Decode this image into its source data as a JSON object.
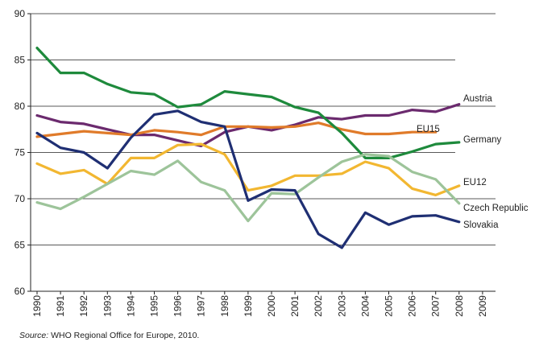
{
  "chart_data": {
    "type": "line",
    "title": "",
    "xlabel": "",
    "ylabel": "",
    "ylim": [
      60,
      90
    ],
    "yticks": [
      60,
      65,
      70,
      75,
      80,
      85,
      90
    ],
    "x": [
      "1990",
      "1991",
      "1992",
      "1993",
      "1994",
      "1995",
      "1996",
      "1997",
      "1998",
      "1999",
      "2000",
      "2001",
      "2002",
      "2003",
      "2004",
      "2005",
      "2006",
      "2007",
      "2008",
      "2009"
    ],
    "grid": "horizontal",
    "legend": "inline labels at line ends",
    "series": [
      {
        "name": "Austria",
        "color": "#6b2a6e",
        "values": [
          79.0,
          78.3,
          78.1,
          77.5,
          76.9,
          76.9,
          76.3,
          75.7,
          77.2,
          77.8,
          77.4,
          78.0,
          78.8,
          78.6,
          79.0,
          79.0,
          79.6,
          79.4,
          80.2,
          null
        ]
      },
      {
        "name": "EU15",
        "color": "#e07b2a",
        "values": [
          76.7,
          77.0,
          77.3,
          77.1,
          76.9,
          77.4,
          77.2,
          76.9,
          77.8,
          77.8,
          77.7,
          77.8,
          78.2,
          77.5,
          77.0,
          77.0,
          77.2,
          77.2,
          null,
          null
        ]
      },
      {
        "name": "Germany",
        "color": "#1e8a3c",
        "values": [
          86.3,
          83.6,
          83.6,
          82.4,
          81.5,
          81.3,
          79.9,
          80.2,
          81.6,
          81.3,
          81.0,
          79.9,
          79.3,
          77.1,
          74.4,
          74.4,
          75.1,
          75.9,
          76.1,
          null
        ]
      },
      {
        "name": "EU12",
        "color": "#f2b731",
        "values": [
          73.8,
          72.7,
          73.1,
          71.6,
          74.4,
          74.4,
          75.8,
          75.9,
          74.8,
          70.9,
          71.4,
          72.5,
          72.5,
          72.7,
          74.0,
          73.3,
          71.1,
          70.4,
          71.4,
          null
        ]
      },
      {
        "name": "Czech Republic",
        "color": "#9dc49a",
        "values": [
          69.6,
          68.9,
          70.2,
          71.6,
          73.0,
          72.6,
          74.1,
          71.8,
          70.9,
          67.6,
          70.6,
          70.5,
          72.3,
          74.0,
          74.8,
          74.6,
          72.9,
          72.1,
          69.5,
          null
        ]
      },
      {
        "name": "Slovakia",
        "color": "#1f2f73",
        "values": [
          77.1,
          75.5,
          75.0,
          73.3,
          76.6,
          79.1,
          79.5,
          78.3,
          77.8,
          69.8,
          71.0,
          70.9,
          66.2,
          64.7,
          68.5,
          67.2,
          68.1,
          68.2,
          67.5,
          null
        ]
      }
    ]
  },
  "source": {
    "label": "Source:",
    "text": " WHO Regional Office for Europe, 2010."
  }
}
